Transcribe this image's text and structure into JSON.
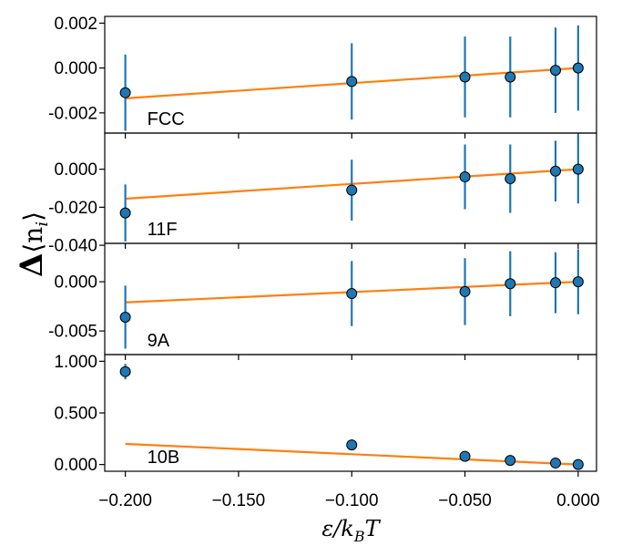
{
  "chart_data": {
    "type": "scatter",
    "shared_x": {
      "ticks": [
        -0.2,
        -0.15,
        -0.1,
        -0.05,
        0.0
      ],
      "tick_labels": [
        "−0.200",
        "−0.150",
        "−0.100",
        "−0.050",
        "0.000"
      ],
      "xlim": [
        -0.2091,
        0.0081
      ]
    },
    "xlabel": "ε/k_BT",
    "ylabel": "Δ⟨n_i⟩",
    "grid": false,
    "colors": {
      "points": "#1f77b4",
      "errorbars": "#1f77b4",
      "fit": "#ff7f0e",
      "axes": "#000000"
    },
    "panels": [
      {
        "label": "FCC",
        "x": [
          -0.2,
          -0.1,
          -0.05,
          -0.03,
          -0.01,
          0.0
        ],
        "y": [
          -0.0011,
          -0.0006,
          -0.0004,
          -0.0004,
          -0.0001,
          0.0
        ],
        "yerr": [
          0.0017,
          0.0017,
          0.0018,
          0.0018,
          0.0019,
          0.0019
        ],
        "fit": {
          "x": [
            -0.2,
            0.0
          ],
          "y": [
            -0.00135,
            0.0
          ]
        },
        "yticks": [
          -0.002,
          0.0,
          0.002
        ],
        "ytick_labels": [
          "-0.002",
          "0.000",
          "0.002"
        ],
        "ylim": [
          -0.0029,
          0.0023
        ]
      },
      {
        "label": "11F",
        "x": [
          -0.2,
          -0.1,
          -0.05,
          -0.03,
          -0.01,
          0.0
        ],
        "y": [
          -0.023,
          -0.011,
          -0.004,
          -0.005,
          -0.001,
          0.0
        ],
        "yerr": [
          0.015,
          0.016,
          0.017,
          0.018,
          0.016,
          0.018
        ],
        "fit": {
          "x": [
            -0.2,
            0.0
          ],
          "y": [
            -0.0155,
            0.0
          ]
        },
        "yticks": [
          -0.04,
          -0.02,
          0.0
        ],
        "ytick_labels": [
          "-0.040",
          "-0.020",
          "0.000"
        ],
        "ylim": [
          -0.039,
          0.019
        ]
      },
      {
        "label": "9A",
        "x": [
          -0.2,
          -0.1,
          -0.05,
          -0.03,
          -0.01,
          0.0
        ],
        "y": [
          -0.0036,
          -0.0012,
          -0.001,
          -0.0002,
          -0.0001,
          0.0
        ],
        "yerr": [
          0.0032,
          0.0033,
          0.0034,
          0.0033,
          0.0031,
          0.0033
        ],
        "fit": {
          "x": [
            -0.2,
            0.0
          ],
          "y": [
            -0.0021,
            0.0
          ]
        },
        "yticks": [
          -0.005,
          0.0
        ],
        "ytick_labels": [
          "-0.005",
          "0.000"
        ],
        "ylim": [
          -0.0074,
          0.0039
        ]
      },
      {
        "label": "10B",
        "x": [
          -0.2,
          -0.1,
          -0.05,
          -0.03,
          -0.01,
          0.0
        ],
        "y": [
          0.9,
          0.19,
          0.08,
          0.04,
          0.015,
          0.0
        ],
        "yerr": [
          0.075,
          0.0,
          0.0,
          0.0,
          0.0,
          0.0
        ],
        "fit": {
          "x": [
            -0.2,
            0.0
          ],
          "y": [
            0.2,
            0.0
          ]
        },
        "yticks": [
          0.0,
          0.5,
          1.0
        ],
        "ytick_labels": [
          "0.000",
          "0.500",
          "1.000"
        ],
        "ylim": [
          -0.065,
          1.065
        ]
      }
    ]
  }
}
